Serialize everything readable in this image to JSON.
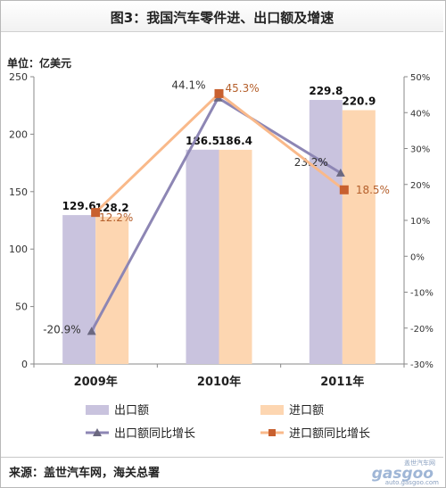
{
  "title": "图3：我国汽车零件进、出口额及增速",
  "unit_label": "单位：亿美元",
  "source": "来源：盖世汽车网，海关总署",
  "watermark": {
    "cn": "盖世汽车网",
    "logo": "gasgoo",
    "url": "auto.gasgoo.com"
  },
  "colors": {
    "export_bar": "#c9c3de",
    "import_bar": "#fdd6b1",
    "export_line": "#8d86b4",
    "import_line": "#f9b98a",
    "import_marker": "#c8602f",
    "export_marker": "#6b6880"
  },
  "chart_data": {
    "type": "bar",
    "categories": [
      "2009年",
      "2010年",
      "2011年"
    ],
    "series": [
      {
        "name": "出口额",
        "values": [
          129.6,
          186.5,
          229.8
        ],
        "value_labels": [
          "129.6",
          "186.5",
          "229.8"
        ]
      },
      {
        "name": "进口额",
        "values": [
          128.2,
          186.4,
          220.9
        ],
        "value_labels": [
          "128.2",
          "186.4",
          "220.9"
        ]
      }
    ],
    "line_series": [
      {
        "name": "出口额同比增长",
        "values": [
          -20.9,
          44.1,
          23.2
        ],
        "value_labels": [
          "-20.9%",
          "44.1%",
          "23.2%"
        ]
      },
      {
        "name": "进口额同比增长",
        "values": [
          12.2,
          45.3,
          18.5
        ],
        "value_labels": [
          "12.2%",
          "45.3%",
          "18.5%"
        ]
      }
    ],
    "ylim": [
      0,
      250
    ],
    "yticks": [
      "0",
      "50",
      "100",
      "150",
      "200",
      "250"
    ],
    "y2lim": [
      -30,
      50
    ],
    "y2ticks": [
      "-30%",
      "-20%",
      "-10%",
      "0%",
      "10%",
      "20%",
      "30%",
      "40%",
      "50%"
    ],
    "grid": false,
    "legend": "bottom"
  }
}
